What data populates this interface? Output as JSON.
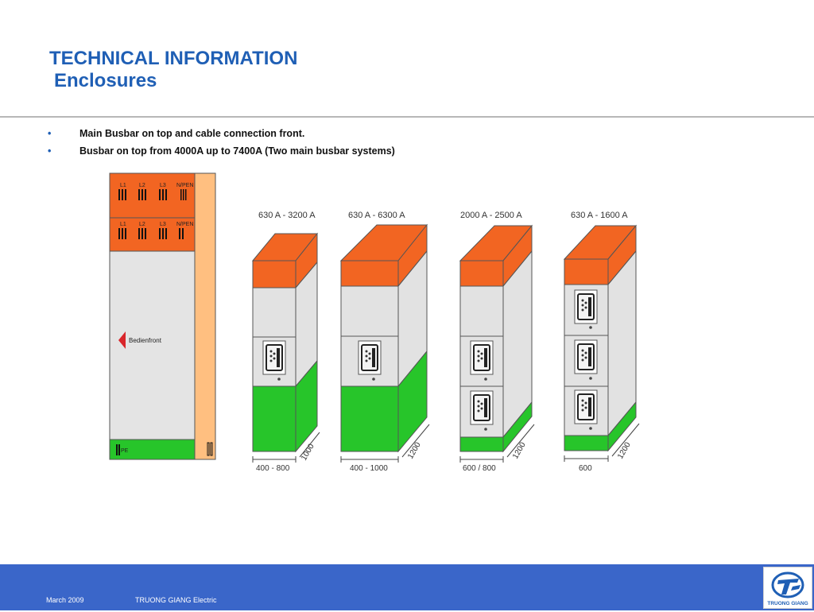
{
  "header": {
    "title": "TECHNICAL INFORMATION",
    "subtitle": "Enclosures"
  },
  "bullets": [
    "Main Busbar on top and cable connection front.",
    "Busbar on top from 4000A up to 7400A (Two main busbar systems)"
  ],
  "side_view": {
    "phase_labels_top": [
      "L1",
      "L2",
      "L3",
      "N/PEN"
    ],
    "phase_labels_bottom": [
      "L1",
      "L2",
      "L3",
      "N/PEN"
    ],
    "front_label": "Bedienfront",
    "pe_label": "PE"
  },
  "cabinets": [
    {
      "rating": "630 A - 3200 A",
      "width": "400 - 800",
      "depth": "1000"
    },
    {
      "rating": "630 A - 6300 A",
      "width": "400 - 1000",
      "depth": "1200"
    },
    {
      "rating": "2000 A - 2500 A",
      "width": "600 / 800",
      "depth": "1200"
    },
    {
      "rating": "630 A - 1600 A",
      "width": "600",
      "depth": "1200"
    }
  ],
  "colors": {
    "title_blue": "#1f5fb5",
    "busbar_orange": "#f26522",
    "cable_green": "#27c52a",
    "footer_blue": "#3a66c9"
  },
  "footer": {
    "date": "March 2009",
    "company": "TRUONG GIANG Electric",
    "logo_text": "TRUONG GIANG"
  }
}
